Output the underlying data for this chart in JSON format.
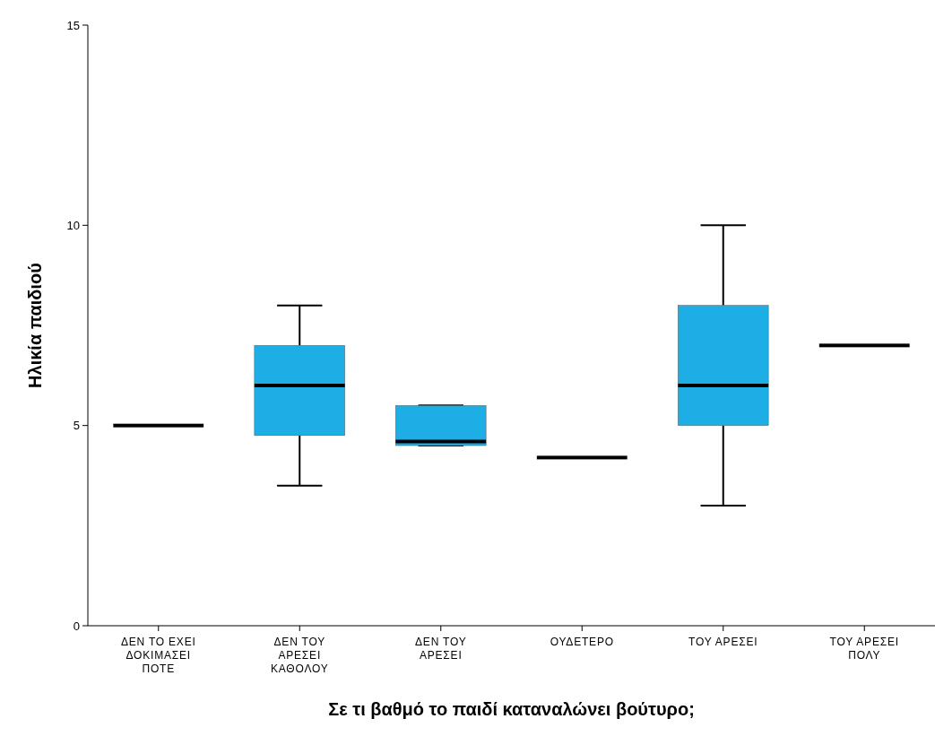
{
  "chart_data": {
    "type": "box",
    "xlabel": "Σε τι βαθμό το παιδί καταναλώνει βούτυρο;",
    "ylabel": "Ηλικία παιδιού",
    "categories": [
      "ΔΕΝ ΤΟ ΕΧΕΙ ΔΟΚΙΜΑΣΕΙ ΠΟΤΕ",
      "ΔΕΝ ΤΟΥ ΑΡΕΣΕΙ ΚΑΘΟΛΟΥ",
      "ΔΕΝ ΤΟΥ ΑΡΕΣΕΙ",
      "ΟΥΔΕΤΕΡΟ",
      "ΤΟΥ ΑΡΕΣΕΙ",
      "ΤΟΥ ΑΡΕΣΕΙ ΠΟΛΥ"
    ],
    "boxes": [
      {
        "low": 5,
        "q1": 5,
        "median": 5,
        "q3": 5,
        "high": 5
      },
      {
        "low": 3.5,
        "q1": 4.75,
        "median": 6,
        "q3": 7,
        "high": 8
      },
      {
        "low": 4.5,
        "q1": 4.5,
        "median": 4.6,
        "q3": 5.5,
        "high": 5.5
      },
      {
        "low": 4.2,
        "q1": 4.2,
        "median": 4.2,
        "q3": 4.2,
        "high": 4.2
      },
      {
        "low": 3,
        "q1": 5,
        "median": 6,
        "q3": 8,
        "high": 10
      },
      {
        "low": 7,
        "q1": 7,
        "median": 7,
        "q3": 7,
        "high": 7
      }
    ],
    "colors": [
      "#000000",
      "#1eaee6",
      "#1eaee6",
      "#000000",
      "#1eaee6",
      "#000000"
    ],
    "ylim": [
      0,
      15
    ],
    "yticks": [
      0,
      5,
      10,
      15
    ],
    "grid": false
  }
}
